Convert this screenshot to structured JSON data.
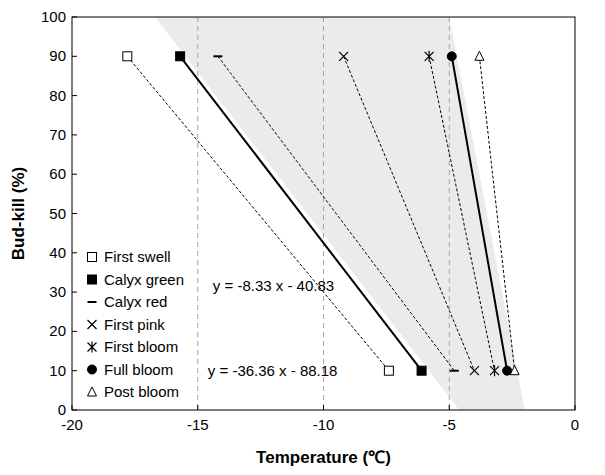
{
  "chart_data": {
    "type": "line",
    "x_label": "Temperature (℃)",
    "y_label": "Bud-kill (%)",
    "xlim": [
      -20,
      0
    ],
    "ylim": [
      0,
      100
    ],
    "xticks": [
      -20,
      -15,
      -10,
      -5,
      0
    ],
    "yticks": [
      0,
      10,
      20,
      30,
      40,
      50,
      60,
      70,
      80,
      90,
      100
    ],
    "grid": "x",
    "legend": "lower left",
    "series": [
      {
        "name": "First swell",
        "color": "#000000",
        "marker": "square-open",
        "line_style": "dashed",
        "x": [
          -17.8,
          -7.4
        ],
        "values": [
          90,
          10
        ]
      },
      {
        "name": "Calyx green",
        "color": "#000000",
        "marker": "square",
        "line_style": "solid",
        "x": [
          -15.7,
          -6.1
        ],
        "values": [
          90,
          10
        ]
      },
      {
        "name": "Calyx red",
        "color": "#000000",
        "marker": "dash",
        "line_style": "dashed",
        "x": [
          -14.2,
          -4.8
        ],
        "values": [
          90,
          10
        ]
      },
      {
        "name": "First pink",
        "color": "#000000",
        "marker": "x",
        "line_style": "dashed",
        "x": [
          -9.2,
          -4.0
        ],
        "values": [
          90,
          10
        ]
      },
      {
        "name": "First bloom",
        "color": "#000000",
        "marker": "asterisk",
        "line_style": "dashed",
        "x": [
          -5.8,
          -3.2
        ],
        "values": [
          90,
          10
        ]
      },
      {
        "name": "Full bloom",
        "color": "#000000",
        "marker": "circle",
        "line_style": "solid",
        "x": [
          -4.9,
          -2.7
        ],
        "values": [
          90,
          10
        ]
      },
      {
        "name": "Post bloom",
        "color": "#000000",
        "marker": "triangle-open",
        "line_style": "dashed",
        "x": [
          -3.8,
          -2.4
        ],
        "values": [
          90,
          10
        ]
      }
    ],
    "shaded_region": {
      "x": [
        -16.7,
        -5.0,
        -2.0,
        -4.6
      ],
      "y": [
        100,
        100,
        0,
        0
      ]
    },
    "annotations": [
      {
        "text": "y = -8.33 x - 40.83",
        "x": -14.4,
        "y": 31.5
      },
      {
        "text": "y = -36.36 x - 88.18",
        "x": -14.6,
        "y": 10
      }
    ]
  }
}
